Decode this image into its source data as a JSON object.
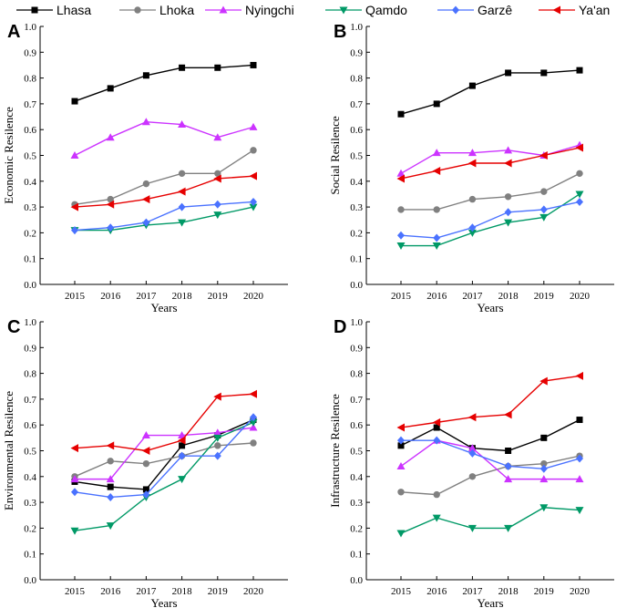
{
  "chart_data": {
    "type": "line",
    "legend": {
      "placement": "top",
      "entries": [
        {
          "name": "Lhasa",
          "color": "#000000",
          "marker": "square"
        },
        {
          "name": "Lhoka",
          "color": "#808080",
          "marker": "circle"
        },
        {
          "name": "Nyingchi",
          "color": "#cc33ff",
          "marker": "triangle-up"
        },
        {
          "name": "Qamdo",
          "color": "#009966",
          "marker": "triangle-down"
        },
        {
          "name": "Garzê",
          "color": "#4a72ff",
          "marker": "diamond"
        },
        {
          "name": "Ya'an",
          "color": "#e60000",
          "marker": "triangle-left"
        }
      ]
    },
    "x": [
      "2015",
      "2016",
      "2017",
      "2018",
      "2019",
      "2020"
    ],
    "ylim": [
      0,
      1.0
    ],
    "yticks": [
      "0.0",
      "0.1",
      "0.2",
      "0.3",
      "0.4",
      "0.5",
      "0.6",
      "0.7",
      "0.8",
      "0.9",
      "1.0"
    ],
    "panels": [
      {
        "letter": "A",
        "xlabel": "Years",
        "ylabel": "Economic Resilence",
        "series": [
          {
            "name": "Lhasa",
            "values": [
              0.71,
              0.76,
              0.81,
              0.84,
              0.84,
              0.85
            ]
          },
          {
            "name": "Lhoka",
            "values": [
              0.31,
              0.33,
              0.39,
              0.43,
              0.43,
              0.52
            ]
          },
          {
            "name": "Nyingchi",
            "values": [
              0.5,
              0.57,
              0.63,
              0.62,
              0.57,
              0.61
            ]
          },
          {
            "name": "Qamdo",
            "values": [
              0.21,
              0.21,
              0.23,
              0.24,
              0.27,
              0.3
            ]
          },
          {
            "name": "Garzê",
            "values": [
              0.21,
              0.22,
              0.24,
              0.3,
              0.31,
              0.32
            ]
          },
          {
            "name": "Ya'an",
            "values": [
              0.3,
              0.31,
              0.33,
              0.36,
              0.41,
              0.42
            ]
          }
        ]
      },
      {
        "letter": "B",
        "xlabel": "Years",
        "ylabel": "Social Resilence",
        "series": [
          {
            "name": "Lhasa",
            "values": [
              0.66,
              0.7,
              0.77,
              0.82,
              0.82,
              0.83
            ]
          },
          {
            "name": "Lhoka",
            "values": [
              0.29,
              0.29,
              0.33,
              0.34,
              0.36,
              0.43
            ]
          },
          {
            "name": "Nyingchi",
            "values": [
              0.43,
              0.51,
              0.51,
              0.52,
              0.5,
              0.54
            ]
          },
          {
            "name": "Qamdo",
            "values": [
              0.15,
              0.15,
              0.2,
              0.24,
              0.26,
              0.35
            ]
          },
          {
            "name": "Garzê",
            "values": [
              0.19,
              0.18,
              0.22,
              0.28,
              0.29,
              0.32
            ]
          },
          {
            "name": "Ya'an",
            "values": [
              0.41,
              0.44,
              0.47,
              0.47,
              0.5,
              0.53
            ]
          }
        ]
      },
      {
        "letter": "C",
        "xlabel": "Years",
        "ylabel": "Environmental Resilence",
        "series": [
          {
            "name": "Lhasa",
            "values": [
              0.38,
              0.36,
              0.35,
              0.52,
              0.56,
              0.62
            ]
          },
          {
            "name": "Lhoka",
            "values": [
              0.4,
              0.46,
              0.45,
              0.48,
              0.52,
              0.53
            ]
          },
          {
            "name": "Nyingchi",
            "values": [
              0.39,
              0.39,
              0.56,
              0.56,
              0.57,
              0.59
            ]
          },
          {
            "name": "Qamdo",
            "values": [
              0.19,
              0.21,
              0.32,
              0.39,
              0.55,
              0.61
            ]
          },
          {
            "name": "Garzê",
            "values": [
              0.34,
              0.32,
              0.33,
              0.48,
              0.48,
              0.63
            ]
          },
          {
            "name": "Ya'an",
            "values": [
              0.51,
              0.52,
              0.5,
              0.54,
              0.71,
              0.72
            ]
          }
        ]
      },
      {
        "letter": "D",
        "xlabel": "Years",
        "ylabel": "Infrastructure Resilence",
        "series": [
          {
            "name": "Lhasa",
            "values": [
              0.52,
              0.59,
              0.51,
              0.5,
              0.55,
              0.62
            ]
          },
          {
            "name": "Lhoka",
            "values": [
              0.34,
              0.33,
              0.4,
              0.44,
              0.45,
              0.48
            ]
          },
          {
            "name": "Nyingchi",
            "values": [
              0.44,
              0.54,
              0.51,
              0.39,
              0.39,
              0.39
            ]
          },
          {
            "name": "Qamdo",
            "values": [
              0.18,
              0.24,
              0.2,
              0.2,
              0.28,
              0.27
            ]
          },
          {
            "name": "Garzê",
            "values": [
              0.54,
              0.54,
              0.49,
              0.44,
              0.43,
              0.47
            ]
          },
          {
            "name": "Ya'an",
            "values": [
              0.59,
              0.61,
              0.63,
              0.64,
              0.77,
              0.79
            ]
          }
        ]
      }
    ]
  }
}
